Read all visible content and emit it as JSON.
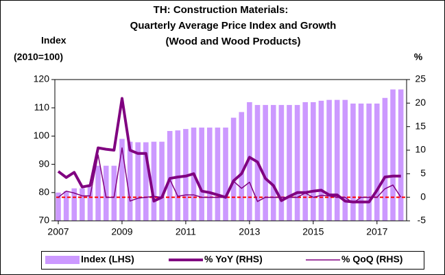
{
  "chart_data": {
    "type": "bar-line",
    "title": [
      "TH: Construction Materials:",
      "Quarterly Average Price Index and Growth",
      "(Wood and Wood Products)"
    ],
    "y_label": [
      "Index",
      "(2010=100)"
    ],
    "y2_label": "%",
    "categories": [
      "2007",
      null,
      null,
      null,
      null,
      null,
      null,
      null,
      "2009",
      null,
      null,
      null,
      null,
      null,
      null,
      null,
      "2011",
      null,
      null,
      null,
      null,
      null,
      null,
      null,
      "2013",
      null,
      null,
      null,
      null,
      null,
      null,
      null,
      "2015",
      null,
      null,
      null,
      null,
      null,
      null,
      null,
      "2017",
      null,
      null,
      null
    ],
    "series": [
      {
        "name": "Index (LHS)",
        "kind": "bar",
        "color": "#cc99ff",
        "axis": "y",
        "values": [
          80,
          80.5,
          81.5,
          81.5,
          82,
          89.5,
          89.5,
          89.5,
          99,
          98,
          97.8,
          97.8,
          98,
          98,
          101.8,
          102,
          102.5,
          103,
          103,
          103,
          103,
          103,
          106.5,
          108.5,
          112,
          111,
          111,
          111,
          111,
          111,
          111,
          112,
          112,
          112.5,
          112.8,
          112.8,
          112.8,
          111.5,
          111.5,
          111.5,
          111.5,
          113.5,
          116.5,
          116.5
        ]
      },
      {
        "name": "% YoY (RHS)",
        "kind": "line",
        "color": "#800080",
        "width": 4,
        "axis": "y2",
        "values": [
          5.5,
          4.2,
          5.3,
          2.2,
          2.5,
          10.5,
          10.2,
          10,
          21,
          10,
          9.3,
          9.3,
          -0.8,
          0,
          4,
          4.3,
          4.5,
          5,
          1.3,
          1,
          0.5,
          0,
          3.5,
          5,
          8.5,
          7.5,
          4,
          2.5,
          -0.7,
          0.2,
          1,
          1,
          1.3,
          1.5,
          0.5,
          0.5,
          -0.8,
          -1,
          -1,
          -1,
          1.5,
          4.3,
          4.5,
          4.5
        ]
      },
      {
        "name": "% QoQ (RHS)",
        "kind": "line",
        "color": "#800080",
        "width": 1.5,
        "axis": "y2",
        "values": [
          0,
          1.3,
          0.9,
          0.3,
          0.3,
          9,
          0,
          0,
          10.5,
          -0.8,
          -0.2,
          0,
          0.2,
          0,
          3.8,
          0.2,
          0.5,
          0.5,
          0,
          0,
          0,
          0,
          3.4,
          1.9,
          3.2,
          -0.9,
          0,
          0,
          0,
          0,
          0,
          0.9,
          0,
          0.4,
          0.3,
          0,
          0,
          -1.2,
          0,
          0,
          0,
          1.8,
          2.6,
          0
        ]
      }
    ],
    "ylim": [
      70,
      120
    ],
    "yticks": [
      70,
      80,
      90,
      100,
      110,
      120
    ],
    "y2lim": [
      -5,
      25
    ],
    "y2ticks": [
      -5,
      0,
      5,
      10,
      15,
      20,
      25
    ],
    "reference_line": {
      "value": 0,
      "axis": "y2",
      "color": "#ff0000"
    },
    "legend": "bottom"
  }
}
